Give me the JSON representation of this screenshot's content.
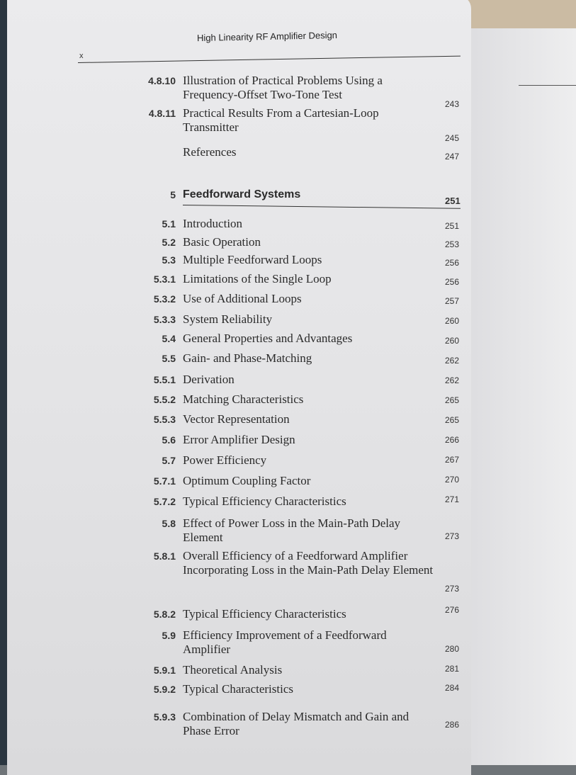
{
  "header": {
    "running_title": "High Linearity RF Amplifier Design",
    "folio": "x"
  },
  "entries": [
    {
      "num": "4.8.10",
      "title": "Illustration of Practical Problems Using a Frequency-Offset Two-Tone Test",
      "page": "243"
    },
    {
      "num": "4.8.11",
      "title": "Practical Results From a Cartesian-Loop Transmitter",
      "page": "245"
    },
    {
      "num": "",
      "title": "References",
      "page": "247"
    },
    {
      "num": "5",
      "title": "Feedforward Systems",
      "page": "251"
    },
    {
      "num": "5.1",
      "title": "Introduction",
      "page": "251"
    },
    {
      "num": "5.2",
      "title": "Basic Operation",
      "page": "253"
    },
    {
      "num": "5.3",
      "title": "Multiple Feedforward Loops",
      "page": "256"
    },
    {
      "num": "5.3.1",
      "title": "Limitations of the Single Loop",
      "page": "256"
    },
    {
      "num": "5.3.2",
      "title": "Use of Additional Loops",
      "page": "257"
    },
    {
      "num": "5.3.3",
      "title": "System Reliability",
      "page": "260"
    },
    {
      "num": "5.4",
      "title": "General Properties and Advantages",
      "page": "260"
    },
    {
      "num": "5.5",
      "title": "Gain- and Phase-Matching",
      "page": "262"
    },
    {
      "num": "5.5.1",
      "title": "Derivation",
      "page": "262"
    },
    {
      "num": "5.5.2",
      "title": "Matching Characteristics",
      "page": "265"
    },
    {
      "num": "5.5.3",
      "title": "Vector Representation",
      "page": "265"
    },
    {
      "num": "5.6",
      "title": "Error Amplifier Design",
      "page": "266"
    },
    {
      "num": "5.7",
      "title": "Power Efficiency",
      "page": "267"
    },
    {
      "num": "5.7.1",
      "title": "Optimum Coupling Factor",
      "page": "270"
    },
    {
      "num": "5.7.2",
      "title": "Typical Efficiency Characteristics",
      "page": "271"
    },
    {
      "num": "5.8",
      "title": "Effect of Power Loss in the Main-Path Delay Element",
      "page": "273"
    },
    {
      "num": "5.8.1",
      "title": "Overall Efficiency of a Feedforward Amplifier Incorporating Loss in the Main-Path Delay Element",
      "page": "273"
    },
    {
      "num": "5.8.2",
      "title": "Typical Efficiency Characteristics",
      "page": "276"
    },
    {
      "num": "5.9",
      "title": "Efficiency Improvement of a Feedforward Amplifier",
      "page": "280"
    },
    {
      "num": "5.9.1",
      "title": "Theoretical Analysis",
      "page": "281"
    },
    {
      "num": "5.9.2",
      "title": "Typical Characteristics",
      "page": "284"
    },
    {
      "num": "5.9.3",
      "title": "Combination of Delay Mismatch and Gain and Phase Error",
      "page": "286"
    }
  ]
}
